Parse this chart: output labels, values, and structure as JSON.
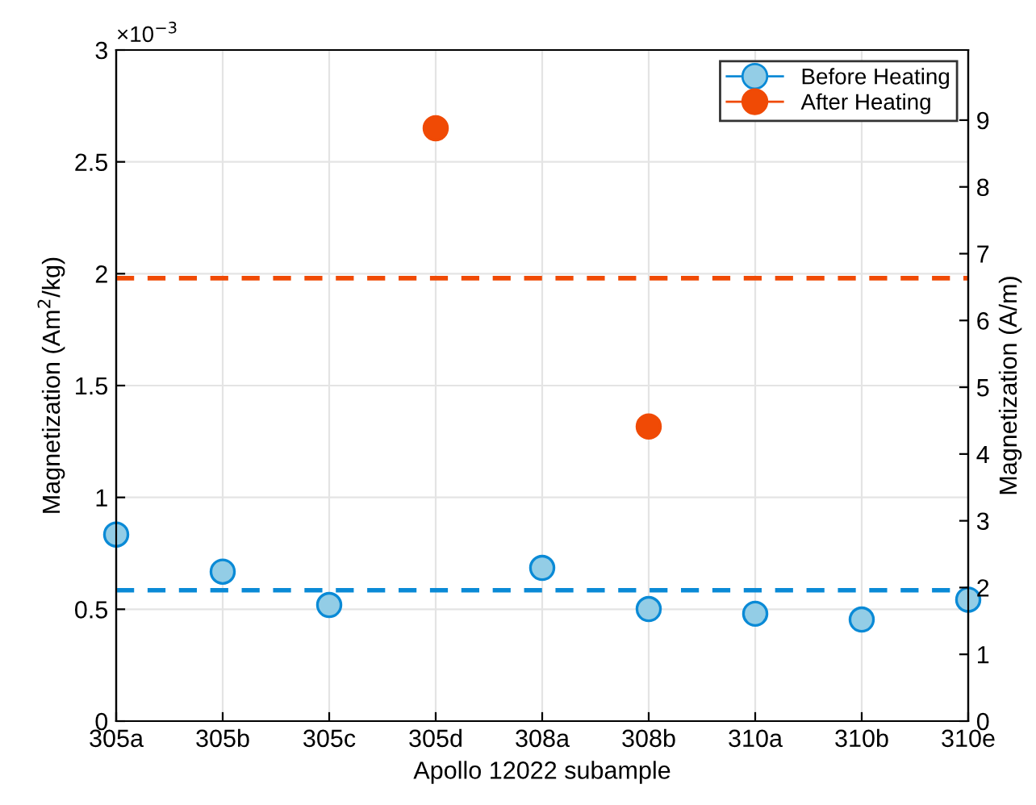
{
  "chart_data": {
    "type": "scatter",
    "xlabel": "Apollo 12022 subample",
    "ylabel": "Magnetization (Am$^{2}$/kg)",
    "y2label": "Magnetization (A/m)",
    "categories": [
      "305a",
      "305b",
      "305c",
      "305d",
      "308a",
      "308b",
      "310a",
      "310b",
      "310e"
    ],
    "series": [
      {
        "name": "Before Heating",
        "color": "#93cde6",
        "values": [
          0.834,
          0.668,
          0.519,
          null,
          0.685,
          0.501,
          0.48,
          0.454,
          0.543
        ]
      },
      {
        "name": "After Heating",
        "color": "#f04a05",
        "values": [
          null,
          null,
          null,
          2.65,
          null,
          1.317,
          null,
          null,
          null
        ]
      }
    ],
    "ylim": [
      0,
      3
    ],
    "yticks": [
      0,
      0.5,
      1,
      1.5,
      2,
      2.5,
      3
    ],
    "y2lim": [
      0,
      10.05
    ],
    "y2ticks": [
      0,
      1,
      2,
      3,
      4,
      5,
      6,
      7,
      8,
      9
    ],
    "ref_lines": [
      {
        "axis": "y",
        "value": 0.585,
        "color": "#0a8ad6",
        "line_style": "dashed"
      },
      {
        "axis": "y",
        "value": 1.98,
        "color": "#f04a05",
        "line_style": "dashed"
      }
    ],
    "annotations": [
      "×10$^{−3}$"
    ],
    "grid": true,
    "legend": "top right",
    "marker": "circle"
  }
}
